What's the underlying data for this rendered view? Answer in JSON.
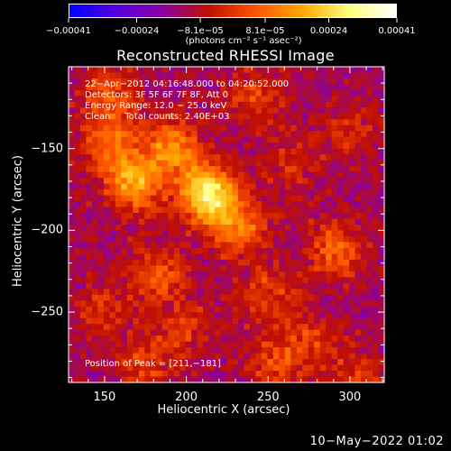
{
  "chart_data": {
    "type": "heatmap",
    "title": "Reconstructed RHESSI Image",
    "xlabel": "Heliocentric X (arcsec)",
    "ylabel": "Heliocentric Y (arcsec)",
    "xlim": [
      128,
      321
    ],
    "ylim": [
      -293,
      -100
    ],
    "x_ticks": [
      150,
      200,
      250,
      300
    ],
    "x_tick_labels": [
      "150",
      "200",
      "250",
      "300"
    ],
    "y_ticks": [
      -150,
      -200,
      -250
    ],
    "y_tick_labels": [
      "−150",
      "−200",
      "−250"
    ],
    "colorbar": {
      "range": [
        -0.00041,
        0.00041
      ],
      "tick_values": [
        -0.00041,
        -0.00024,
        -8.1e-05,
        8.1e-05,
        0.00024,
        0.00041
      ],
      "tick_labels": [
        "−0.00041",
        "−0.00024",
        "−8.1e−05",
        "8.1e−05",
        "0.00024",
        "0.00041"
      ],
      "units_label": "(photons cm⁻² s⁻¹ asec⁻²)",
      "colormap": [
        "#0000ff",
        "#5500e0",
        "#8a00a0",
        "#c01000",
        "#ff5500",
        "#ffaa00",
        "#ffff80",
        "#ffffff"
      ]
    },
    "annotations": {
      "line1": "22−Apr−2012 04:16:48.000 to 04:20:52.000",
      "line2": "Detectors: 3F 5F 6F 7F 8F, Att 0",
      "line3": "Energy Range: 12.0 − 25.0 keV",
      "line4": "Clean     Total counts: 2.40E+03",
      "peak": "Position of Peak = [211,−181]"
    },
    "peak_position": [
      211,
      -181
    ],
    "sources": [
      {
        "x": 213,
        "y": -178,
        "intensity": 0.00041
      },
      {
        "x": 168,
        "y": -172,
        "intensity": 0.00028
      },
      {
        "x": 155,
        "y": -148,
        "intensity": 0.0002
      },
      {
        "x": 192,
        "y": -150,
        "intensity": 0.00025
      },
      {
        "x": 232,
        "y": -198,
        "intensity": 0.00022
      },
      {
        "x": 152,
        "y": -118,
        "intensity": 0.00017
      },
      {
        "x": 182,
        "y": -228,
        "intensity": 0.00017
      },
      {
        "x": 292,
        "y": -212,
        "intensity": 0.00019
      },
      {
        "x": 242,
        "y": -118,
        "intensity": 0.00012
      },
      {
        "x": 300,
        "y": -140,
        "intensity": 9e-05
      },
      {
        "x": 250,
        "y": -240,
        "intensity": 0.00014
      },
      {
        "x": 200,
        "y": -260,
        "intensity": 0.00011
      },
      {
        "x": 278,
        "y": -268,
        "intensity": 0.00011
      },
      {
        "x": 255,
        "y": -280,
        "intensity": 0.00014
      },
      {
        "x": 175,
        "y": -282,
        "intensity": 0.00013
      },
      {
        "x": 148,
        "y": -250,
        "intensity": 0.0001
      },
      {
        "x": 305,
        "y": -290,
        "intensity": 0.00012
      },
      {
        "x": 265,
        "y": -160,
        "intensity": 9e-05
      }
    ]
  },
  "footer": {
    "timestamp": "10−May−2022 01:02"
  }
}
